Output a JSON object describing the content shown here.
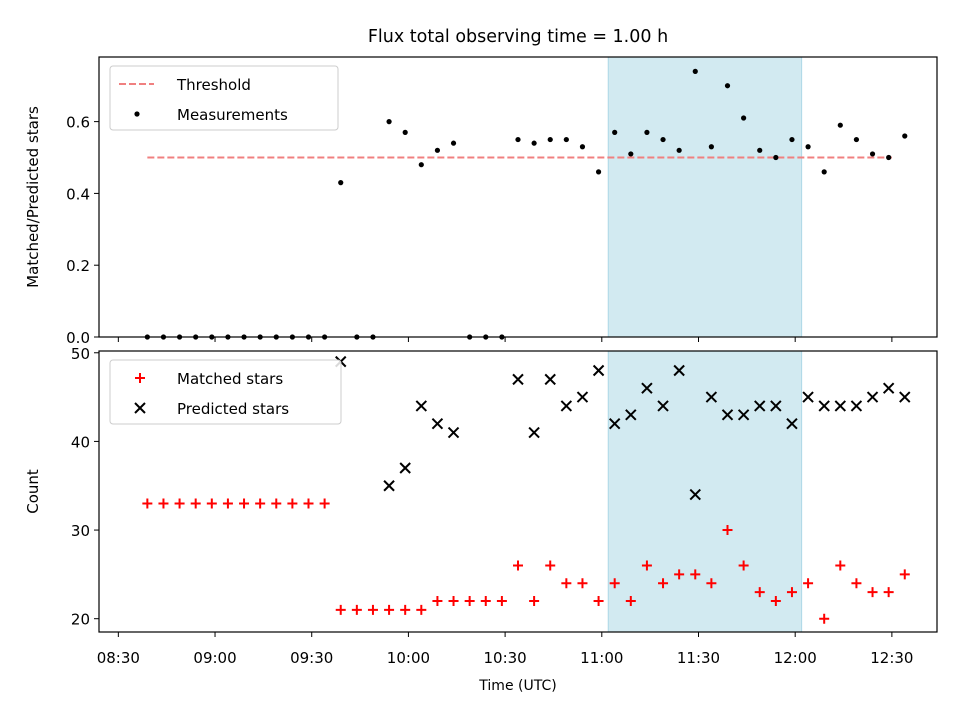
{
  "chart_data": [
    {
      "type": "scatter",
      "title": "Flux total observing time = 1.00 h",
      "ylabel": "Matched/Predicted stars",
      "xlim": [
        "08:24",
        "12:44"
      ],
      "ylim": [
        0,
        0.78
      ],
      "yticks": [
        0.0,
        0.2,
        0.4,
        0.6
      ],
      "ytick_labels": [
        "0.0",
        "0.2",
        "0.4",
        "0.6"
      ],
      "highlight_span": {
        "start": "11:02",
        "end": "12:02",
        "color": "#add8e6"
      },
      "legend": {
        "loc": "upper left",
        "entries": [
          "Threshold",
          "Measurements"
        ]
      },
      "series": [
        {
          "name": "Threshold",
          "style": "dashed-line",
          "color": "#f08080",
          "x": [
            "08:39",
            "12:30"
          ],
          "y": [
            0.5,
            0.5
          ]
        },
        {
          "name": "Measurements",
          "style": "dot",
          "color": "#000000",
          "x": [
            "08:39",
            "08:44",
            "08:49",
            "08:54",
            "08:59",
            "09:04",
            "09:09",
            "09:14",
            "09:19",
            "09:24",
            "09:29",
            "09:34",
            "09:39",
            "09:44",
            "09:49",
            "09:54",
            "09:59",
            "10:04",
            "10:09",
            "10:14",
            "10:19",
            "10:24",
            "10:29",
            "10:34",
            "10:39",
            "10:44",
            "10:49",
            "10:54",
            "10:59",
            "11:04",
            "11:09",
            "11:14",
            "11:19",
            "11:24",
            "11:29",
            "11:34",
            "11:39",
            "11:44",
            "11:49",
            "11:54",
            "11:59",
            "12:04",
            "12:09",
            "12:14",
            "12:19",
            "12:24",
            "12:29",
            "12:34"
          ],
          "y": [
            0,
            0,
            0,
            0,
            0,
            0,
            0,
            0,
            0,
            0,
            0,
            0,
            0.43,
            0,
            0,
            0.6,
            0.57,
            0.48,
            0.52,
            0.54,
            0,
            0,
            0,
            0.55,
            0.54,
            0.55,
            0.55,
            0.53,
            0.46,
            0.57,
            0.51,
            0.57,
            0.55,
            0.52,
            0.74,
            0.53,
            0.7,
            0.61,
            0.52,
            0.5,
            0.55,
            0.53,
            0.46,
            0.59,
            0.55,
            0.51,
            0.5,
            0.56
          ]
        }
      ]
    },
    {
      "type": "scatter",
      "xlabel": "Time (UTC)",
      "ylabel": "Count",
      "xlim": [
        "08:24",
        "12:44"
      ],
      "ylim": [
        18.5,
        50.2
      ],
      "yticks": [
        20,
        30,
        40,
        50
      ],
      "ytick_labels": [
        "20",
        "30",
        "40",
        "50"
      ],
      "xticks": [
        "08:30",
        "09:00",
        "09:30",
        "10:00",
        "10:30",
        "11:00",
        "11:30",
        "12:00",
        "12:30"
      ],
      "highlight_span": {
        "start": "11:02",
        "end": "12:02",
        "color": "#add8e6"
      },
      "legend": {
        "loc": "upper left",
        "entries": [
          "Matched stars",
          "Predicted stars"
        ]
      },
      "series": [
        {
          "name": "Matched stars",
          "marker": "+",
          "color": "#ff0000",
          "x": [
            "08:39",
            "08:44",
            "08:49",
            "08:54",
            "08:59",
            "09:04",
            "09:09",
            "09:14",
            "09:19",
            "09:24",
            "09:29",
            "09:34",
            "09:39",
            "09:44",
            "09:49",
            "09:54",
            "09:59",
            "10:04",
            "10:09",
            "10:14",
            "10:19",
            "10:24",
            "10:29",
            "10:34",
            "10:39",
            "10:44",
            "10:49",
            "10:54",
            "10:59",
            "11:04",
            "11:09",
            "11:14",
            "11:19",
            "11:24",
            "11:29",
            "11:34",
            "11:39",
            "11:44",
            "11:49",
            "11:54",
            "11:59",
            "12:04",
            "12:09",
            "12:14",
            "12:19",
            "12:24",
            "12:29",
            "12:34"
          ],
          "y": [
            33,
            33,
            33,
            33,
            33,
            33,
            33,
            33,
            33,
            33,
            33,
            33,
            21,
            21,
            21,
            21,
            21,
            21,
            22,
            22,
            22,
            22,
            22,
            26,
            22,
            26,
            24,
            24,
            22,
            24,
            22,
            26,
            24,
            25,
            25,
            24,
            30,
            26,
            23,
            22,
            23,
            24,
            20,
            26,
            24,
            23,
            23,
            25
          ]
        },
        {
          "name": "Predicted stars",
          "marker": "x",
          "color": "#000000",
          "x": [
            "09:39",
            "09:54",
            "09:59",
            "10:04",
            "10:09",
            "10:14",
            "10:34",
            "10:39",
            "10:44",
            "10:49",
            "10:54",
            "10:59",
            "11:04",
            "11:09",
            "11:14",
            "11:19",
            "11:24",
            "11:29",
            "11:34",
            "11:39",
            "11:44",
            "11:49",
            "11:54",
            "11:59",
            "12:04",
            "12:09",
            "12:14",
            "12:19",
            "12:24",
            "12:29",
            "12:34"
          ],
          "y": [
            49,
            35,
            37,
            44,
            42,
            41,
            47,
            41,
            47,
            44,
            45,
            48,
            42,
            43,
            46,
            44,
            48,
            34,
            45,
            43,
            43,
            44,
            44,
            42,
            45,
            44,
            44,
            44,
            45,
            46,
            45
          ]
        }
      ]
    }
  ]
}
